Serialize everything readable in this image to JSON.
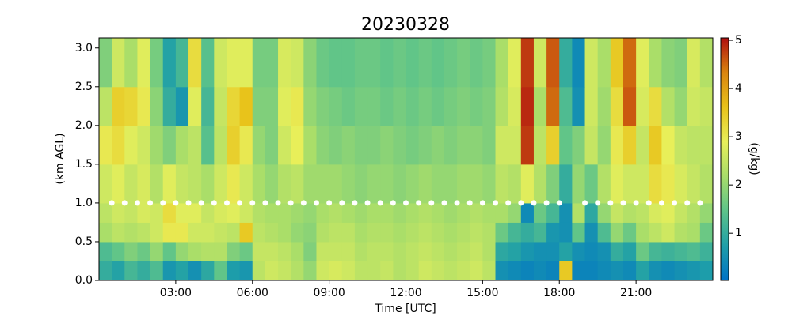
{
  "chart_data": {
    "type": "heatmap",
    "title": "20230328",
    "xlabel": "Time [UTC]",
    "ylabel": "(km AGL)",
    "colorbar_label": "(g/kg)",
    "xlim": [
      0,
      24
    ],
    "ylim": [
      0,
      3.13
    ],
    "clim": [
      0.02,
      5.05
    ],
    "xticks": [
      {
        "value": 3,
        "label": "03:00"
      },
      {
        "value": 6,
        "label": "06:00"
      },
      {
        "value": 9,
        "label": "09:00"
      },
      {
        "value": 12,
        "label": "12:00"
      },
      {
        "value": 15,
        "label": "15:00"
      },
      {
        "value": 18,
        "label": "18:00"
      },
      {
        "value": 21,
        "label": "21:00"
      }
    ],
    "yticks": [
      {
        "value": 0,
        "label": "0.0"
      },
      {
        "value": 0.5,
        "label": "0.5"
      },
      {
        "value": 1,
        "label": "1.0"
      },
      {
        "value": 1.5,
        "label": "1.5"
      },
      {
        "value": 2,
        "label": "2.0"
      },
      {
        "value": 2.5,
        "label": "2.5"
      },
      {
        "value": 3,
        "label": "3.0"
      }
    ],
    "cticks": [
      1,
      2,
      3,
      4,
      5
    ],
    "colormap": [
      "#0072c6",
      "#1f9fa8",
      "#5cc38a",
      "#a8dd6a",
      "#e8ef5a",
      "#e8c21a",
      "#d9850f",
      "#b01010"
    ],
    "x_edges": [
      0,
      0.5,
      1,
      1.5,
      2,
      2.5,
      3,
      3.5,
      4,
      4.5,
      5,
      5.5,
      6,
      6.5,
      7,
      7.5,
      8,
      8.5,
      9,
      9.5,
      10,
      10.5,
      11,
      11.5,
      12,
      12.5,
      13,
      13.5,
      14,
      14.5,
      15,
      15.5,
      16,
      16.5,
      17,
      17.5,
      18,
      18.5,
      19,
      19.5,
      20,
      20.5,
      21,
      21.5,
      22,
      22.5,
      23,
      23.5,
      24
    ],
    "y_edges": [
      0,
      0.25,
      0.5,
      0.75,
      1.0,
      1.5,
      2.0,
      2.5,
      3.13
    ],
    "z": [
      [
        1.0,
        0.8,
        1.2,
        1.0,
        1.3,
        0.6,
        0.8,
        0.5,
        0.9,
        1.5,
        0.7,
        0.6,
        2.4,
        2.6,
        2.5,
        2.3,
        2.0,
        2.6,
        2.7,
        2.6,
        2.4,
        2.4,
        2.5,
        2.3,
        2.4,
        2.6,
        2.5,
        2.4,
        2.5,
        2.6,
        2.4,
        0.5,
        0.4,
        0.3,
        0.4,
        0.3,
        3.5,
        0.3,
        0.3,
        0.4,
        0.5,
        0.4,
        0.8,
        0.5,
        0.4,
        0.5,
        0.6,
        0.7
      ],
      [
        1.3,
        1.5,
        1.8,
        1.6,
        2.0,
        1.5,
        2.0,
        2.2,
        2.3,
        2.3,
        1.8,
        1.6,
        2.5,
        2.5,
        2.4,
        2.2,
        1.8,
        2.5,
        2.5,
        2.5,
        2.3,
        2.4,
        2.4,
        2.3,
        2.4,
        2.5,
        2.4,
        2.3,
        2.4,
        2.5,
        2.3,
        0.9,
        0.8,
        0.6,
        0.5,
        0.5,
        0.8,
        0.5,
        0.4,
        0.5,
        1.0,
        0.8,
        1.6,
        1.2,
        1.1,
        1.2,
        1.3,
        1.1
      ],
      [
        2.2,
        2.4,
        2.3,
        2.4,
        2.6,
        3.0,
        3.0,
        2.6,
        2.6,
        2.5,
        2.4,
        3.5,
        2.4,
        2.3,
        2.2,
        2.0,
        1.9,
        2.3,
        2.4,
        2.4,
        2.2,
        2.3,
        2.3,
        2.2,
        2.3,
        2.4,
        2.3,
        2.2,
        2.3,
        2.4,
        2.3,
        1.6,
        1.2,
        1.0,
        1.2,
        0.6,
        0.5,
        1.5,
        0.5,
        1.3,
        2.0,
        1.6,
        2.2,
        2.4,
        2.6,
        2.3,
        2.2,
        1.6
      ],
      [
        2.4,
        2.6,
        2.5,
        2.7,
        2.6,
        3.2,
        2.8,
        2.8,
        2.5,
        2.7,
        2.8,
        2.6,
        2.3,
        2.2,
        2.2,
        2.1,
        2.0,
        2.2,
        2.3,
        2.2,
        2.1,
        2.2,
        2.2,
        2.1,
        2.2,
        2.3,
        2.2,
        2.1,
        2.2,
        2.3,
        2.2,
        2.2,
        2.0,
        0.4,
        1.6,
        1.2,
        0.5,
        2.3,
        0.9,
        2.0,
        2.5,
        2.3,
        2.4,
        2.7,
        2.8,
        2.5,
        2.3,
        2.0
      ],
      [
        2.6,
        2.8,
        2.5,
        2.7,
        2.3,
        2.8,
        2.5,
        2.4,
        2.2,
        2.6,
        3.0,
        2.6,
        2.2,
        2.0,
        2.3,
        2.4,
        2.1,
        2.1,
        2.1,
        2.0,
        1.9,
        2.0,
        2.0,
        1.9,
        2.0,
        2.1,
        2.0,
        2.0,
        2.1,
        2.1,
        2.0,
        2.4,
        2.3,
        2.8,
        2.3,
        1.8,
        1.0,
        2.0,
        1.6,
        2.3,
        2.8,
        2.6,
        2.6,
        3.2,
        3.0,
        2.7,
        2.5,
        2.3
      ],
      [
        3.0,
        3.2,
        2.8,
        2.6,
        2.1,
        1.8,
        2.2,
        2.4,
        1.4,
        2.4,
        3.4,
        3.0,
        2.0,
        1.8,
        2.6,
        2.9,
        2.2,
        1.9,
        1.8,
        1.9,
        1.8,
        1.8,
        1.9,
        1.8,
        1.7,
        1.8,
        1.9,
        1.8,
        1.9,
        1.9,
        1.8,
        2.6,
        2.6,
        4.8,
        2.4,
        3.4,
        1.5,
        1.8,
        2.5,
        2.0,
        3.0,
        3.4,
        2.5,
        3.5,
        2.9,
        2.5,
        2.4,
        2.4
      ],
      [
        2.4,
        3.4,
        3.3,
        3.0,
        1.9,
        1.0,
        0.6,
        2.8,
        1.2,
        2.5,
        3.3,
        3.6,
        1.8,
        1.8,
        2.8,
        3.0,
        2.0,
        1.8,
        1.7,
        1.6,
        1.7,
        1.7,
        1.6,
        1.7,
        1.6,
        1.7,
        1.6,
        1.7,
        1.8,
        1.7,
        1.8,
        2.3,
        2.7,
        4.9,
        2.2,
        4.5,
        1.3,
        0.5,
        2.6,
        2.1,
        3.2,
        4.6,
        2.7,
        3.2,
        2.3,
        2.0,
        2.6,
        2.5
      ],
      [
        1.8,
        2.6,
        2.2,
        2.8,
        1.7,
        0.8,
        1.2,
        3.2,
        1.4,
        2.6,
        2.8,
        2.8,
        1.7,
        1.7,
        2.7,
        2.6,
        1.9,
        1.6,
        1.5,
        1.5,
        1.6,
        1.6,
        1.5,
        1.6,
        1.5,
        1.6,
        1.5,
        1.6,
        1.7,
        1.6,
        1.7,
        2.2,
        2.8,
        4.8,
        2.6,
        4.6,
        1.0,
        0.4,
        2.6,
        2.2,
        3.5,
        4.5,
        2.8,
        2.2,
        1.9,
        1.8,
        2.7,
        2.3
      ]
    ],
    "marker_color": "#ffffff",
    "marker_y": 1.0,
    "marker_x": [
      0.5,
      1,
      1.5,
      2,
      2.5,
      3,
      3.5,
      4,
      4.5,
      5,
      5.5,
      6,
      6.5,
      7,
      7.5,
      8,
      8.5,
      9,
      9.5,
      10,
      10.5,
      11,
      11.5,
      12,
      12.5,
      13,
      13.5,
      14,
      14.5,
      15,
      15.5,
      16,
      16.5,
      17,
      17.5,
      18,
      19,
      19.5,
      20,
      20.5,
      21,
      21.5,
      22,
      22.5,
      23,
      23.5
    ]
  }
}
